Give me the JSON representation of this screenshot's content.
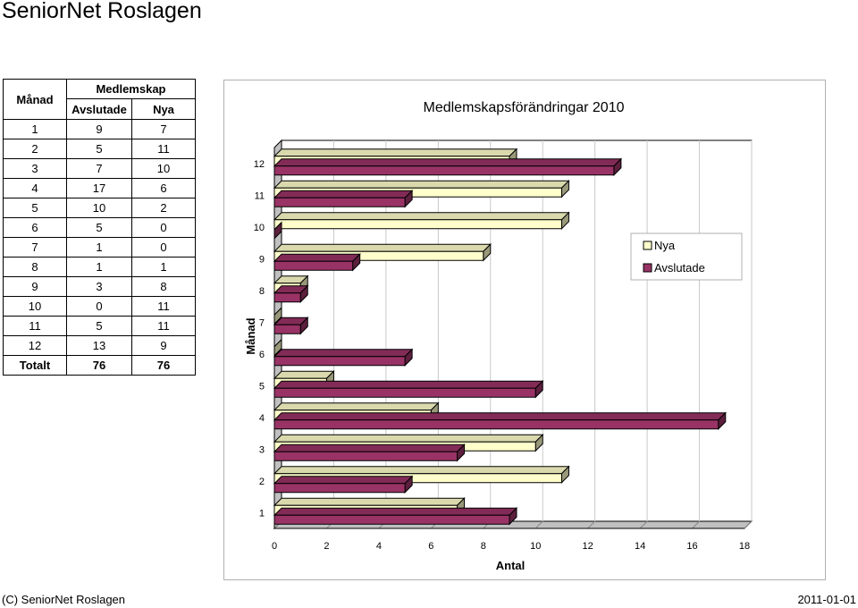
{
  "page": {
    "title": "SeniorNet Roslagen",
    "footer_left": "(C) SeniorNet Roslagen",
    "footer_right": "2011-01-01"
  },
  "table": {
    "header_month": "Månad",
    "header_group": "Medlemskap",
    "header_avslutade": "Avslutade",
    "header_nya": "Nya",
    "rows": [
      {
        "month": "1",
        "avslutade": "9",
        "nya": "7"
      },
      {
        "month": "2",
        "avslutade": "5",
        "nya": "11"
      },
      {
        "month": "3",
        "avslutade": "7",
        "nya": "10"
      },
      {
        "month": "4",
        "avslutade": "17",
        "nya": "6"
      },
      {
        "month": "5",
        "avslutade": "10",
        "nya": "2"
      },
      {
        "month": "6",
        "avslutade": "5",
        "nya": "0"
      },
      {
        "month": "7",
        "avslutade": "1",
        "nya": "0"
      },
      {
        "month": "8",
        "avslutade": "1",
        "nya": "1"
      },
      {
        "month": "9",
        "avslutade": "3",
        "nya": "8"
      },
      {
        "month": "10",
        "avslutade": "0",
        "nya": "11"
      },
      {
        "month": "11",
        "avslutade": "5",
        "nya": "11"
      },
      {
        "month": "12",
        "avslutade": "13",
        "nya": "9"
      }
    ],
    "total_label": "Totalt",
    "total_avslutade": "76",
    "total_nya": "76"
  },
  "chart_data": {
    "type": "bar",
    "orientation": "horizontal",
    "three_d": true,
    "title": "Medlemskapsförändringar 2010",
    "xlabel": "Antal",
    "ylabel": "Månad",
    "categories": [
      "1",
      "2",
      "3",
      "4",
      "5",
      "6",
      "7",
      "8",
      "9",
      "10",
      "11",
      "12"
    ],
    "series": [
      {
        "name": "Nya",
        "color": "#ffffcc",
        "values": [
          7,
          11,
          10,
          6,
          2,
          0,
          0,
          1,
          8,
          11,
          11,
          9
        ]
      },
      {
        "name": "Avslutade",
        "color": "#993366",
        "values": [
          9,
          5,
          7,
          17,
          10,
          5,
          1,
          1,
          3,
          0,
          5,
          13
        ]
      }
    ],
    "xlim": [
      0,
      18
    ],
    "xticks": [
      "0",
      "2",
      "4",
      "6",
      "8",
      "10",
      "12",
      "14",
      "16",
      "18"
    ],
    "grid": true,
    "legend_position": "right"
  }
}
